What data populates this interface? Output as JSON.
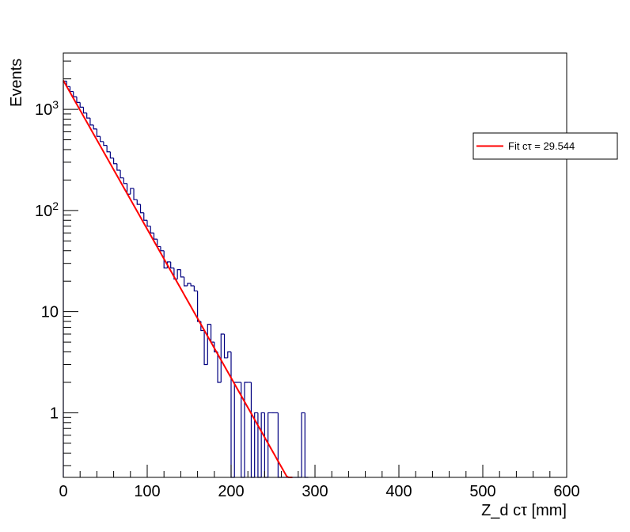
{
  "chart_data": {
    "type": "histogram",
    "title": "",
    "xlabel": "Z_d cτ [mm]",
    "ylabel": "Events",
    "xlim": [
      0,
      600
    ],
    "ylim": [
      0.23,
      3600
    ],
    "y_scale": "log",
    "bin_width": 4,
    "x_ticks": [
      {
        "value": 0,
        "label": "0"
      },
      {
        "value": 100,
        "label": "100"
      },
      {
        "value": 200,
        "label": "200"
      },
      {
        "value": 300,
        "label": "300"
      },
      {
        "value": 400,
        "label": "400"
      },
      {
        "value": 500,
        "label": "500"
      },
      {
        "value": 600,
        "label": "600"
      }
    ],
    "y_ticks": [
      {
        "value": 1,
        "label": "1",
        "sup": ""
      },
      {
        "value": 10,
        "label": "10",
        "sup": ""
      },
      {
        "value": 100,
        "label": "10",
        "sup": "2"
      },
      {
        "value": 1000,
        "label": "10",
        "sup": "3"
      }
    ],
    "histogram": {
      "name": "data",
      "color": "#000080",
      "bins": [
        {
          "x": 0,
          "count": 1900
        },
        {
          "x": 4,
          "count": 1680
        },
        {
          "x": 8,
          "count": 1500
        },
        {
          "x": 12,
          "count": 1330
        },
        {
          "x": 16,
          "count": 1170
        },
        {
          "x": 20,
          "count": 1050
        },
        {
          "x": 24,
          "count": 920
        },
        {
          "x": 28,
          "count": 820
        },
        {
          "x": 32,
          "count": 700
        },
        {
          "x": 36,
          "count": 640
        },
        {
          "x": 40,
          "count": 540
        },
        {
          "x": 44,
          "count": 480
        },
        {
          "x": 48,
          "count": 440
        },
        {
          "x": 52,
          "count": 380
        },
        {
          "x": 56,
          "count": 330
        },
        {
          "x": 60,
          "count": 290
        },
        {
          "x": 64,
          "count": 250
        },
        {
          "x": 68,
          "count": 210
        },
        {
          "x": 72,
          "count": 185
        },
        {
          "x": 76,
          "count": 145
        },
        {
          "x": 80,
          "count": 165
        },
        {
          "x": 84,
          "count": 128
        },
        {
          "x": 88,
          "count": 115
        },
        {
          "x": 92,
          "count": 95
        },
        {
          "x": 96,
          "count": 80
        },
        {
          "x": 100,
          "count": 70
        },
        {
          "x": 104,
          "count": 60
        },
        {
          "x": 108,
          "count": 52
        },
        {
          "x": 112,
          "count": 44
        },
        {
          "x": 116,
          "count": 40
        },
        {
          "x": 120,
          "count": 27
        },
        {
          "x": 124,
          "count": 31
        },
        {
          "x": 128,
          "count": 27
        },
        {
          "x": 132,
          "count": 21
        },
        {
          "x": 136,
          "count": 26
        },
        {
          "x": 140,
          "count": 22
        },
        {
          "x": 144,
          "count": 18
        },
        {
          "x": 148,
          "count": 19
        },
        {
          "x": 152,
          "count": 18
        },
        {
          "x": 156,
          "count": 16
        },
        {
          "x": 160,
          "count": 8
        },
        {
          "x": 164,
          "count": 6.5
        },
        {
          "x": 168,
          "count": 3
        },
        {
          "x": 172,
          "count": 7.5
        },
        {
          "x": 176,
          "count": 5
        },
        {
          "x": 180,
          "count": 4
        },
        {
          "x": 184,
          "count": 2
        },
        {
          "x": 188,
          "count": 6
        },
        {
          "x": 192,
          "count": 3.5
        },
        {
          "x": 196,
          "count": 4
        },
        {
          "x": 200,
          "count": 0
        },
        {
          "x": 204,
          "count": 2
        },
        {
          "x": 208,
          "count": 2
        },
        {
          "x": 212,
          "count": 0
        },
        {
          "x": 216,
          "count": 2
        },
        {
          "x": 220,
          "count": 2
        },
        {
          "x": 224,
          "count": 0
        },
        {
          "x": 228,
          "count": 1
        },
        {
          "x": 232,
          "count": 0
        },
        {
          "x": 236,
          "count": 1
        },
        {
          "x": 240,
          "count": 0
        },
        {
          "x": 244,
          "count": 1
        },
        {
          "x": 248,
          "count": 1
        },
        {
          "x": 252,
          "count": 1
        },
        {
          "x": 256,
          "count": 0
        },
        {
          "x": 260,
          "count": 0
        },
        {
          "x": 264,
          "count": 0
        },
        {
          "x": 268,
          "count": 0
        },
        {
          "x": 272,
          "count": 0
        },
        {
          "x": 276,
          "count": 0
        },
        {
          "x": 280,
          "count": 0
        },
        {
          "x": 284,
          "count": 1
        },
        {
          "x": 288,
          "count": 0
        }
      ]
    },
    "fit": {
      "name": "Fit cτ = 29.544",
      "color": "#ff0000",
      "amplitude": 1930,
      "ctau": 29.544,
      "x_range": [
        0,
        273
      ]
    },
    "legend": {
      "position": "top-right",
      "entries": [
        {
          "label": "Fit cτ = 29.544",
          "color": "#ff0000"
        }
      ]
    }
  }
}
